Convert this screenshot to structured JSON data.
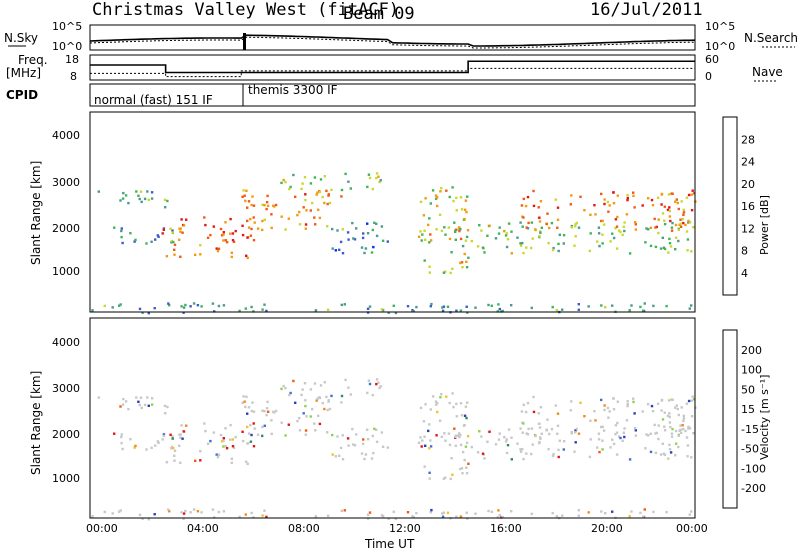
{
  "header": {
    "station": "Christmas Valley West (fitACF)",
    "beam": "Beam 09",
    "date": "16/Jul/2011"
  },
  "noise_panel": {
    "left_label": "N.Sky",
    "right_label": "N.Search",
    "y_ticks": [
      "10^5",
      "10^0"
    ],
    "right_ticks": [
      "10^5",
      "10^0"
    ]
  },
  "freq_panel": {
    "left_label_1": "Freq.",
    "left_label_2": "[MHz]",
    "right_label": "Nave",
    "y_ticks": [
      "18",
      "8"
    ],
    "right_ticks": [
      "60",
      "0"
    ],
    "freq_steps": [
      {
        "t_start": 0.0,
        "t_end": 3.0,
        "freq": 14.0
      },
      {
        "t_start": 3.0,
        "t_end": 15.0,
        "freq": 11.0
      },
      {
        "t_start": 15.0,
        "t_end": 24.0,
        "freq": 15.5
      }
    ],
    "nave_steps": [
      {
        "t_start": 0.0,
        "t_end": 3.0,
        "nave": 16
      },
      {
        "t_start": 3.0,
        "t_end": 6.0,
        "nave": 8
      },
      {
        "t_start": 6.0,
        "t_end": 15.0,
        "nave": 22
      },
      {
        "t_start": 15.0,
        "t_end": 24.0,
        "nave": 28
      }
    ]
  },
  "cpid_panel": {
    "label": "CPID",
    "modes": [
      {
        "text": "normal (fast) 151 IF",
        "t_start": 0.0,
        "t_end": 6.0
      },
      {
        "text": "themis 3300 IF",
        "t_start": 6.0,
        "t_end": 24.0
      }
    ]
  },
  "power_panel": {
    "ylabel": "Slant Range [km]",
    "y_ticks": [
      "1000",
      "2000",
      "3000",
      "4000"
    ],
    "colorbar": {
      "label": "Power [dB]",
      "ticks": [
        "4",
        "8",
        "12",
        "16",
        "20",
        "24",
        "28"
      ],
      "colors": [
        "#0a28ff",
        "#3b5dcc",
        "#4a9a8e",
        "#3fb35a",
        "#c8d82c",
        "#f29a12",
        "#f15a14",
        "#e01818"
      ]
    }
  },
  "velocity_panel": {
    "ylabel": "Slant Range [km]",
    "y_ticks": [
      "1000",
      "2000",
      "3000",
      "4000"
    ],
    "colorbar": {
      "label": "Velocity [m s⁻¹]",
      "ticks": [
        "200",
        "100",
        "50",
        "15",
        "-15",
        "-50",
        "-100",
        "-200"
      ],
      "colors": [
        "#2a3fb8",
        "#3f6fd6",
        "#2f8f4f",
        "#8fd14f",
        "#c8c8c8",
        "#f3c12a",
        "#f28a1a",
        "#f05a14",
        "#e01818"
      ]
    }
  },
  "x_axis": {
    "label": "Time UT",
    "ticks": [
      "00:00",
      "04:00",
      "08:00",
      "12:00",
      "16:00",
      "20:00",
      "00:00"
    ]
  },
  "chart_data": {
    "type": "heatmap",
    "x_range_hours": [
      0,
      24
    ],
    "y_range_km": [
      180,
      4600
    ],
    "scatter_regions": [
      {
        "t0": 0.3,
        "t1": 3.2,
        "r0": 2500,
        "r1": 2900,
        "level": 0.35
      },
      {
        "t0": 0.5,
        "t1": 3.5,
        "r0": 1700,
        "r1": 2100,
        "level": 0.3
      },
      {
        "t0": 2.8,
        "t1": 6.5,
        "r0": 1400,
        "r1": 2300,
        "level": 0.85
      },
      {
        "t0": 6.0,
        "t1": 10.0,
        "r0": 2000,
        "r1": 2900,
        "level": 0.75
      },
      {
        "t0": 7.5,
        "t1": 11.5,
        "r0": 2900,
        "r1": 3300,
        "level": 0.5
      },
      {
        "t0": 9.5,
        "t1": 12.0,
        "r0": 1500,
        "r1": 2200,
        "level": 0.25
      },
      {
        "t0": 13.0,
        "t1": 15.0,
        "r0": 1000,
        "r1": 3000,
        "level": 0.6
      },
      {
        "t0": 14.5,
        "t1": 24.0,
        "r0": 1500,
        "r1": 2200,
        "level": 0.45
      },
      {
        "t0": 17.0,
        "t1": 24.0,
        "r0": 2000,
        "r1": 2900,
        "level": 0.8
      },
      {
        "t0": 0.0,
        "t1": 24.0,
        "r0": 180,
        "r1": 400,
        "level": 0.3
      }
    ]
  }
}
